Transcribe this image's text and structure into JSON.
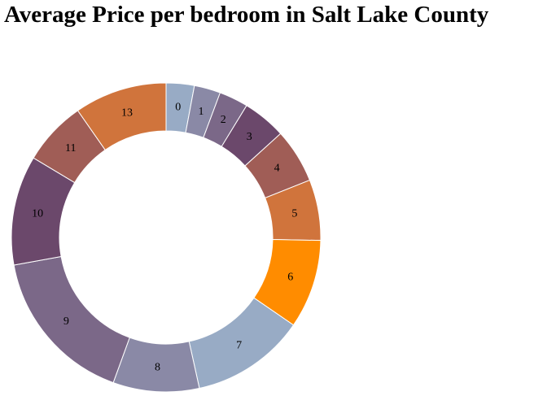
{
  "title": "Average Price per bedroom in Salt Lake County",
  "chart_data": {
    "type": "pie",
    "donut": true,
    "title": "Average Price per bedroom in Salt Lake County",
    "legend": "none",
    "slices": [
      {
        "label": "0",
        "value": 3.1,
        "color": "#98abc5"
      },
      {
        "label": "1",
        "value": 2.9,
        "color": "#8a89a6"
      },
      {
        "label": "2",
        "value": 3.2,
        "color": "#7b6888"
      },
      {
        "label": "3",
        "value": 4.8,
        "color": "#6b486b"
      },
      {
        "label": "4",
        "value": 6.0,
        "color": "#a05d56"
      },
      {
        "label": "5",
        "value": 6.7,
        "color": "#d0743c"
      },
      {
        "label": "6",
        "value": 9.8,
        "color": "#ff8c00"
      },
      {
        "label": "7",
        "value": 12.6,
        "color": "#98abc5"
      },
      {
        "label": "8",
        "value": 9.5,
        "color": "#8a89a6"
      },
      {
        "label": "9",
        "value": 17.5,
        "color": "#7b6888"
      },
      {
        "label": "10",
        "value": 12.1,
        "color": "#6b486b"
      },
      {
        "label": "11",
        "value": 7.1,
        "color": "#a05d56"
      },
      {
        "label": "13",
        "value": 10.2,
        "color": "#d0743c"
      }
    ]
  }
}
